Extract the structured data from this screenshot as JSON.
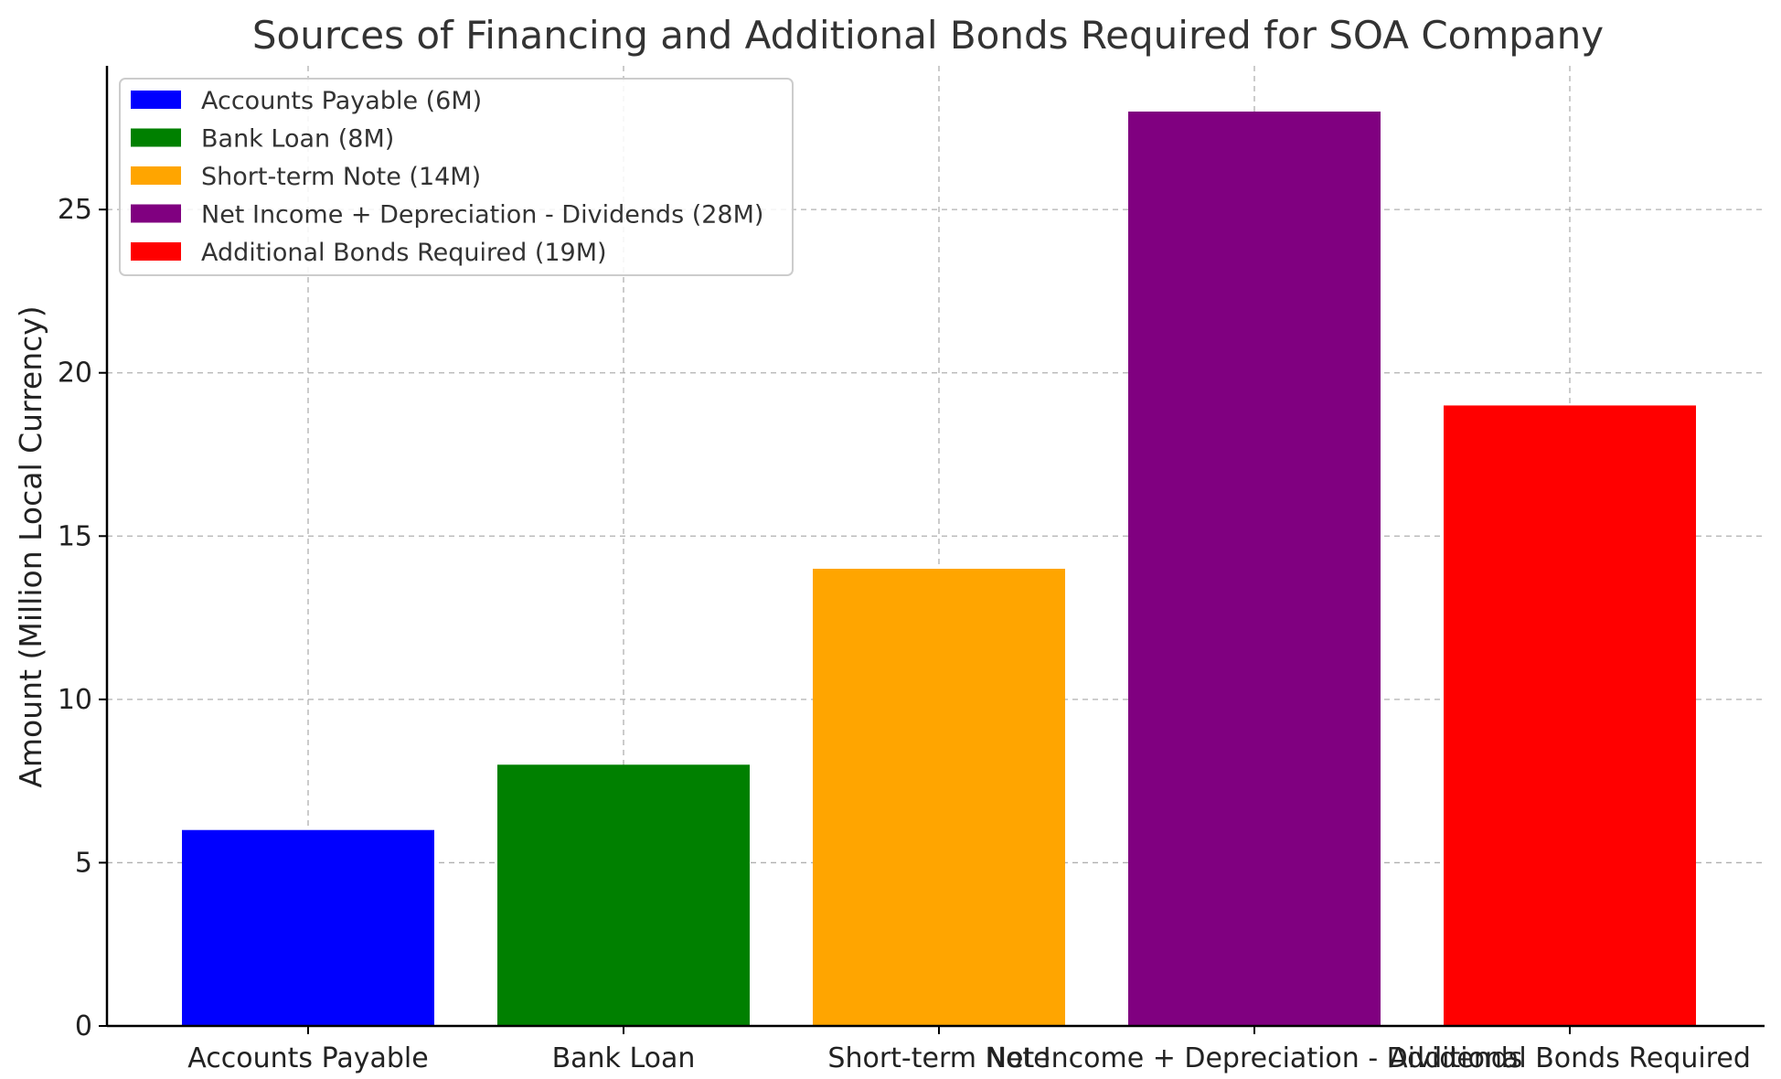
{
  "chart_data": {
    "type": "bar",
    "title": "Sources of Financing and Additional Bonds Required for SOA Company",
    "xlabel": "",
    "ylabel": "Amount (Million Local Currency)",
    "ylim": [
      0,
      29.4
    ],
    "yticks": [
      0,
      5,
      10,
      15,
      20,
      25
    ],
    "grid": true,
    "legend_position": "top-left",
    "categories": [
      "Accounts Payable",
      "Bank Loan",
      "Short-term Note",
      "Net Income + Depreciation - Dividends",
      "Additional Bonds Required"
    ],
    "values": [
      6,
      8,
      14,
      28,
      19
    ],
    "colors": [
      "#0000ff",
      "#008000",
      "#ffa500",
      "#800080",
      "#ff0000"
    ],
    "legend": [
      "Accounts Payable (6M)",
      "Bank Loan (8M)",
      "Short-term Note (14M)",
      "Net Income + Depreciation - Dividends (28M)",
      "Additional Bonds Required (19M)"
    ]
  }
}
